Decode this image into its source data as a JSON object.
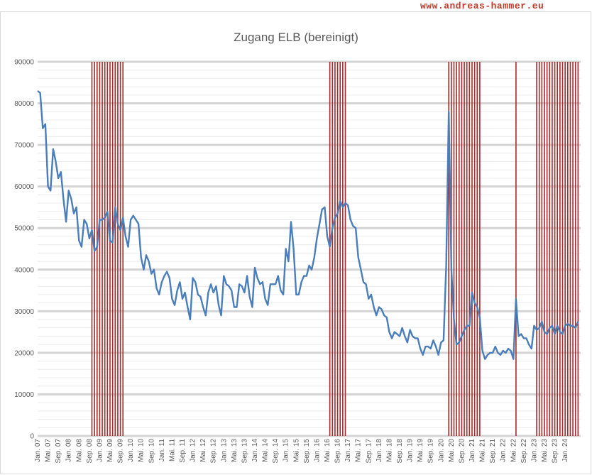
{
  "watermark": "www.andreas-hammer.eu",
  "chart_data": {
    "type": "line",
    "title": "Zugang ELB (bereinigt)",
    "xlabel": "",
    "ylabel": "",
    "ylim": [
      0,
      90000
    ],
    "yticks": [
      0,
      10000,
      20000,
      30000,
      40000,
      50000,
      60000,
      70000,
      80000,
      90000
    ],
    "x_start": "2007-01",
    "x_end": "2024-07",
    "xtick_labels": [
      "Jan. 07",
      "Mai. 07",
      "Sep. 07",
      "Jan. 08",
      "Mai. 08",
      "Sep. 08",
      "Jan. 09",
      "Mai. 09",
      "Sep. 09",
      "Jan. 10",
      "Mai. 10",
      "Sep. 10",
      "Jan. 11",
      "Mai. 11",
      "Sep. 11",
      "Jan. 12",
      "Mai. 12",
      "Sep. 12",
      "Jan. 13",
      "Mai. 13",
      "Sep. 13",
      "Jan. 14",
      "Mai. 14",
      "Sep. 14",
      "Jan. 15",
      "Mai. 15",
      "Sep. 15",
      "Jan. 16",
      "Mai. 16",
      "Sep. 16",
      "Jan. 17",
      "Mai. 17",
      "Sep. 17",
      "Jan. 18",
      "Mai. 18",
      "Sep. 18",
      "Jan. 19",
      "Mai. 19",
      "Sep. 19",
      "Jan. 20",
      "Mai. 20",
      "Sep. 20",
      "Jan. 21",
      "Mai. 21",
      "Sep. 21",
      "Jan. 22",
      "Mai. 22",
      "Sep. 22",
      "Jan. 23",
      "Mai. 23",
      "Sep. 23",
      "Jan. 24"
    ],
    "grid": true,
    "line_color": "#4a7ebb",
    "marker_color": "#a52a2a",
    "series": [
      {
        "name": "",
        "points": [
          [
            "2007-01",
            83000
          ],
          [
            "2007-02",
            82500
          ],
          [
            "2007-03",
            74000
          ],
          [
            "2007-04",
            75000
          ],
          [
            "2007-05",
            60000
          ],
          [
            "2007-06",
            59000
          ],
          [
            "2007-07",
            69000
          ],
          [
            "2007-08",
            66000
          ],
          [
            "2007-09",
            62000
          ],
          [
            "2007-10",
            63500
          ],
          [
            "2007-11",
            57000
          ],
          [
            "2007-12",
            51500
          ],
          [
            "2008-01",
            59000
          ],
          [
            "2008-02",
            57000
          ],
          [
            "2008-03",
            53500
          ],
          [
            "2008-04",
            55000
          ],
          [
            "2008-05",
            47000
          ],
          [
            "2008-06",
            45500
          ],
          [
            "2008-07",
            52000
          ],
          [
            "2008-08",
            51000
          ],
          [
            "2008-09",
            47500
          ],
          [
            "2008-10",
            49500
          ],
          [
            "2008-11",
            44500
          ],
          [
            "2008-12",
            45500
          ],
          [
            "2009-01",
            52000
          ],
          [
            "2009-02",
            52000
          ],
          [
            "2009-03",
            52500
          ],
          [
            "2009-04",
            54000
          ],
          [
            "2009-05",
            47000
          ],
          [
            "2009-06",
            46500
          ],
          [
            "2009-07",
            55000
          ],
          [
            "2009-08",
            51000
          ],
          [
            "2009-09",
            49500
          ],
          [
            "2009-10",
            52500
          ],
          [
            "2009-11",
            48000
          ],
          [
            "2009-12",
            45500
          ],
          [
            "2010-01",
            52000
          ],
          [
            "2010-02",
            53000
          ],
          [
            "2010-03",
            52000
          ],
          [
            "2010-04",
            51000
          ],
          [
            "2010-05",
            43000
          ],
          [
            "2010-06",
            40000
          ],
          [
            "2010-07",
            43500
          ],
          [
            "2010-08",
            42000
          ],
          [
            "2010-09",
            39000
          ],
          [
            "2010-10",
            40000
          ],
          [
            "2010-11",
            35500
          ],
          [
            "2010-12",
            34000
          ],
          [
            "2011-01",
            37000
          ],
          [
            "2011-02",
            38500
          ],
          [
            "2011-03",
            39500
          ],
          [
            "2011-04",
            38000
          ],
          [
            "2011-05",
            33000
          ],
          [
            "2011-06",
            31500
          ],
          [
            "2011-07",
            35000
          ],
          [
            "2011-08",
            37000
          ],
          [
            "2011-09",
            33000
          ],
          [
            "2011-10",
            34500
          ],
          [
            "2011-11",
            31000
          ],
          [
            "2011-12",
            28000
          ],
          [
            "2012-01",
            38000
          ],
          [
            "2012-02",
            37000
          ],
          [
            "2012-03",
            34000
          ],
          [
            "2012-04",
            33500
          ],
          [
            "2012-05",
            31000
          ],
          [
            "2012-06",
            29000
          ],
          [
            "2012-07",
            34500
          ],
          [
            "2012-08",
            36500
          ],
          [
            "2012-09",
            34500
          ],
          [
            "2012-10",
            36000
          ],
          [
            "2012-11",
            31500
          ],
          [
            "2012-12",
            29000
          ],
          [
            "2013-01",
            38500
          ],
          [
            "2013-02",
            36500
          ],
          [
            "2013-03",
            36000
          ],
          [
            "2013-04",
            35000
          ],
          [
            "2013-05",
            31000
          ],
          [
            "2013-06",
            31000
          ],
          [
            "2013-07",
            36500
          ],
          [
            "2013-08",
            36000
          ],
          [
            "2013-09",
            34500
          ],
          [
            "2013-10",
            38500
          ],
          [
            "2013-11",
            33500
          ],
          [
            "2013-12",
            31000
          ],
          [
            "2014-01",
            40500
          ],
          [
            "2014-02",
            38000
          ],
          [
            "2014-03",
            36500
          ],
          [
            "2014-04",
            37000
          ],
          [
            "2014-05",
            33000
          ],
          [
            "2014-06",
            31500
          ],
          [
            "2014-07",
            36500
          ],
          [
            "2014-08",
            36500
          ],
          [
            "2014-09",
            36500
          ],
          [
            "2014-10",
            38500
          ],
          [
            "2014-11",
            35000
          ],
          [
            "2014-12",
            34000
          ],
          [
            "2015-01",
            45000
          ],
          [
            "2015-02",
            42000
          ],
          [
            "2015-03",
            51500
          ],
          [
            "2015-04",
            45000
          ],
          [
            "2015-05",
            34000
          ],
          [
            "2015-06",
            34000
          ],
          [
            "2015-07",
            37000
          ],
          [
            "2015-08",
            38500
          ],
          [
            "2015-09",
            38500
          ],
          [
            "2015-10",
            41000
          ],
          [
            "2015-11",
            40000
          ],
          [
            "2015-12",
            43000
          ],
          [
            "2016-01",
            47500
          ],
          [
            "2016-02",
            51000
          ],
          [
            "2016-03",
            54500
          ],
          [
            "2016-04",
            55000
          ],
          [
            "2016-05",
            48000
          ],
          [
            "2016-06",
            45500
          ],
          [
            "2016-07",
            50000
          ],
          [
            "2016-08",
            52500
          ],
          [
            "2016-09",
            53500
          ],
          [
            "2016-10",
            56500
          ],
          [
            "2016-11",
            55000
          ],
          [
            "2016-12",
            56000
          ],
          [
            "2017-01",
            55500
          ],
          [
            "2017-02",
            52000
          ],
          [
            "2017-03",
            50500
          ],
          [
            "2017-04",
            50000
          ],
          [
            "2017-05",
            43000
          ],
          [
            "2017-06",
            40000
          ],
          [
            "2017-07",
            37000
          ],
          [
            "2017-08",
            36500
          ],
          [
            "2017-09",
            33000
          ],
          [
            "2017-10",
            34000
          ],
          [
            "2017-11",
            31000
          ],
          [
            "2017-12",
            29000
          ],
          [
            "2018-01",
            31000
          ],
          [
            "2018-02",
            30500
          ],
          [
            "2018-03",
            29000
          ],
          [
            "2018-04",
            28500
          ],
          [
            "2018-05",
            25000
          ],
          [
            "2018-06",
            23500
          ],
          [
            "2018-07",
            25000
          ],
          [
            "2018-08",
            24500
          ],
          [
            "2018-09",
            24000
          ],
          [
            "2018-10",
            26000
          ],
          [
            "2018-11",
            24000
          ],
          [
            "2018-12",
            22500
          ],
          [
            "2019-01",
            25500
          ],
          [
            "2019-02",
            24000
          ],
          [
            "2019-03",
            23500
          ],
          [
            "2019-04",
            23500
          ],
          [
            "2019-05",
            21000
          ],
          [
            "2019-06",
            19500
          ],
          [
            "2019-07",
            21500
          ],
          [
            "2019-08",
            21500
          ],
          [
            "2019-09",
            21000
          ],
          [
            "2019-10",
            23000
          ],
          [
            "2019-11",
            21500
          ],
          [
            "2019-12",
            19500
          ],
          [
            "2020-01",
            22500
          ],
          [
            "2020-02",
            23000
          ],
          [
            "2020-03",
            41000
          ],
          [
            "2020-04",
            78000
          ],
          [
            "2020-05",
            40000
          ],
          [
            "2020-06",
            28000
          ],
          [
            "2020-07",
            22000
          ],
          [
            "2020-08",
            22500
          ],
          [
            "2020-09",
            24000
          ],
          [
            "2020-10",
            25500
          ],
          [
            "2020-11",
            26500
          ],
          [
            "2020-12",
            26500
          ],
          [
            "2021-01",
            34500
          ],
          [
            "2021-02",
            32000
          ],
          [
            "2021-03",
            31000
          ],
          [
            "2021-04",
            28500
          ],
          [
            "2021-05",
            20500
          ],
          [
            "2021-06",
            18500
          ],
          [
            "2021-07",
            19500
          ],
          [
            "2021-08",
            20000
          ],
          [
            "2021-09",
            20000
          ],
          [
            "2021-10",
            21500
          ],
          [
            "2021-11",
            20000
          ],
          [
            "2021-12",
            19500
          ],
          [
            "2022-01",
            20500
          ],
          [
            "2022-02",
            20000
          ],
          [
            "2022-03",
            21000
          ],
          [
            "2022-04",
            20500
          ],
          [
            "2022-05",
            18500
          ],
          [
            "2022-06",
            33000
          ],
          [
            "2022-07",
            24000
          ],
          [
            "2022-08",
            24500
          ],
          [
            "2022-09",
            23500
          ],
          [
            "2022-10",
            23500
          ],
          [
            "2022-11",
            22000
          ],
          [
            "2022-12",
            21000
          ],
          [
            "2023-01",
            26500
          ],
          [
            "2023-02",
            25500
          ],
          [
            "2023-03",
            26000
          ],
          [
            "2023-04",
            27500
          ],
          [
            "2023-05",
            25000
          ],
          [
            "2023-06",
            24500
          ],
          [
            "2023-07",
            26000
          ],
          [
            "2023-08",
            26500
          ],
          [
            "2023-09",
            24500
          ],
          [
            "2023-10",
            26500
          ],
          [
            "2023-11",
            25000
          ],
          [
            "2023-12",
            24500
          ],
          [
            "2024-01",
            26500
          ],
          [
            "2024-02",
            27000
          ],
          [
            "2024-03",
            26500
          ],
          [
            "2024-04",
            26500
          ],
          [
            "2024-05",
            26000
          ],
          [
            "2024-06",
            27500
          ]
        ]
      }
    ],
    "markers": [
      "2008-10",
      "2008-11",
      "2008-12",
      "2009-01",
      "2009-02",
      "2009-03",
      "2009-04",
      "2009-05",
      "2009-06",
      "2009-07",
      "2009-08",
      "2009-09",
      "2009-10",
      "2016-06",
      "2016-07",
      "2016-08",
      "2016-09",
      "2016-10",
      "2016-11",
      "2016-12",
      "2020-04",
      "2020-05",
      "2020-06",
      "2020-07",
      "2020-08",
      "2020-09",
      "2020-10",
      "2020-11",
      "2020-12",
      "2021-01",
      "2021-02",
      "2021-03",
      "2021-04",
      "2022-06",
      "2023-02",
      "2023-03",
      "2023-04",
      "2023-05",
      "2023-06",
      "2023-07",
      "2023-08",
      "2023-09",
      "2023-10",
      "2023-11",
      "2023-12",
      "2024-01",
      "2024-02",
      "2024-03",
      "2024-04",
      "2024-05",
      "2024-06"
    ]
  }
}
